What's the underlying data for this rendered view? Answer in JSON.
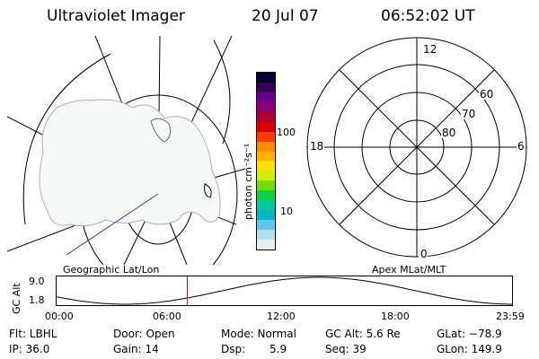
{
  "header": {
    "title": "Ultraviolet Imager",
    "date": "20 Jul 07",
    "time": "06:52:02 UT"
  },
  "left_panel_label": "Geographic Lat/Lon",
  "right_panel_label": "Apex MLat/MLT",
  "colorbar": {
    "unit_label": "photon cm⁻²s⁻¹",
    "ticks": [
      "100",
      "10"
    ],
    "colors": [
      "#000033",
      "#3a0050",
      "#6a0090",
      "#8b0070",
      "#b00030",
      "#d80000",
      "#ff3a00",
      "#ff8c00",
      "#ffb000",
      "#ffe000",
      "#d0f000",
      "#70e000",
      "#10d040",
      "#00c8a0",
      "#00b4d0",
      "#60c8f0",
      "#b0e0f0",
      "#e6eef2"
    ]
  },
  "polar": {
    "mlt_labels": {
      "top": "12",
      "left": "18",
      "right": "6",
      "bottom": "0"
    },
    "lat_labels": [
      "60",
      "70",
      "80"
    ]
  },
  "altitude_plot": {
    "ylabel": "GC Alt",
    "yticks": [
      "9.0",
      "1.8"
    ],
    "xticks": [
      "00:00",
      "06:00",
      "12:00",
      "18:00",
      "23:59"
    ],
    "current_time_marker_hours": 6.87,
    "curve_color": "#000000",
    "marker_color": "#cc0000"
  },
  "status": {
    "row1": {
      "flt": "Flt: LBHL",
      "door": "Door: Open",
      "mode": "Mode: Normal",
      "gc_alt": "GC Alt: 5.6 Re",
      "glat": "GLat: −78.9"
    },
    "row2": {
      "ip": "IP: 36.0",
      "gain": "Gain: 14",
      "dsp_label": "Dsp:",
      "dsp_value": "5.9",
      "seq": "Seq: 39",
      "glon": "GLon: 149.9"
    }
  }
}
